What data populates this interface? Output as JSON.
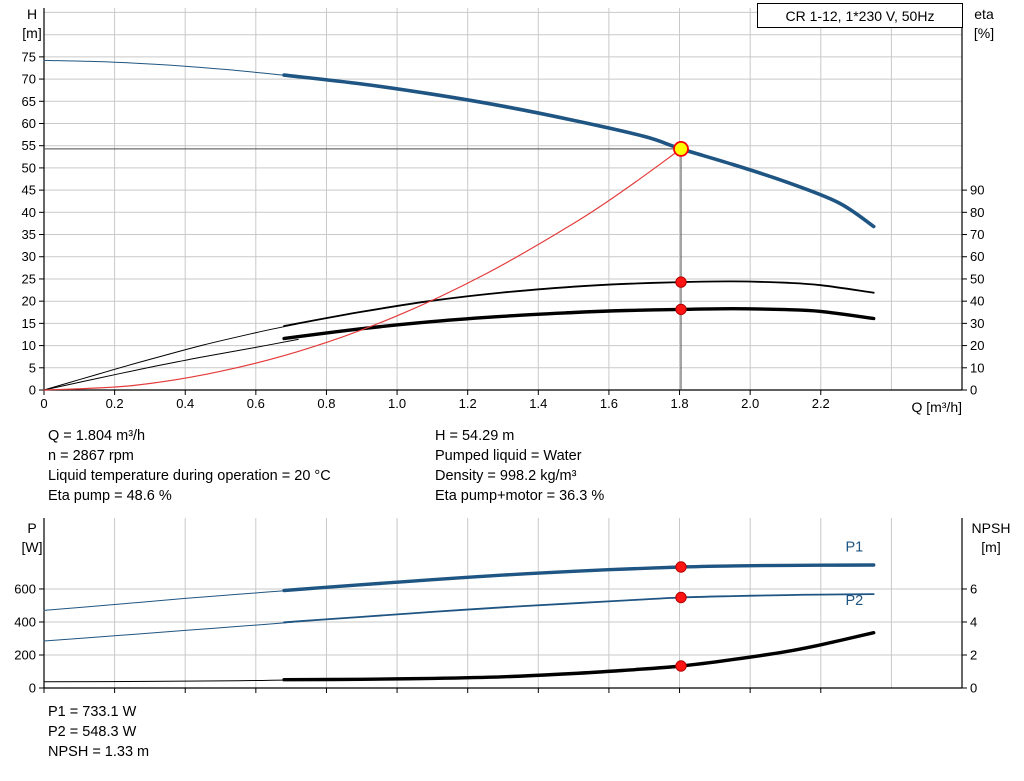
{
  "title_box": "CR 1-12, 1*230 V, 50Hz",
  "colors": {
    "curve_blue": "#1f5582",
    "curve_black": "#000000",
    "system_red": "#e43c3c",
    "marker": "#ff1414",
    "marker_edge": "#b40000",
    "duty_fill": "#ffff00",
    "duty_stroke": "#ff0000",
    "grid": "#c9c9c9",
    "crosshair": "#4a4a4a"
  },
  "axis_labels": {
    "h": "H",
    "h_unit": "[m]",
    "eta": "eta",
    "eta_unit": "[%]",
    "q": "Q [m³/h]",
    "p": "P",
    "p_unit": "[W]",
    "npsh": "NPSH",
    "npsh_unit": "[m]"
  },
  "info_left": [
    "Q = 1.804 m³/h",
    "n = 2867 rpm",
    "Liquid temperature during operation = 20 °C",
    "Eta pump = 48.6 %"
  ],
  "info_right": [
    "H = 54.29 m",
    "Pumped liquid = Water",
    "Density = 998.2 kg/m³",
    "Eta pump+motor = 36.3 %"
  ],
  "info_bottom": [
    "P1 = 733.1 W",
    "P2 = 548.3 W",
    "NPSH = 1.33 m"
  ],
  "chart_data": [
    {
      "type": "line",
      "name": "head-efficiency-chart",
      "title": "CR 1-12, 1*230 V, 50Hz",
      "xlabel": "Q [m³/h]",
      "ylabel_left": "H [m]",
      "ylabel_right": "eta [%]",
      "xlim": [
        0,
        2.6
      ],
      "x_ticks": [
        "0",
        "0.2",
        "0.4",
        "0.6",
        "0.8",
        "1.0",
        "1.2",
        "1.4",
        "1.6",
        "1.8",
        "2.0",
        "2.2"
      ],
      "x_tick_labels": true,
      "x_grid": [
        0.2,
        0.4,
        0.6,
        0.8,
        1.0,
        1.2,
        1.4,
        1.6,
        1.8,
        2.0,
        2.2,
        2.4
      ],
      "ylim_left": [
        0,
        86
      ],
      "y_ticks_left": [
        "0",
        "5",
        "10",
        "15",
        "20",
        "25",
        "30",
        "35",
        "40",
        "45",
        "50",
        "55",
        "60",
        "65",
        "70",
        "75"
      ],
      "y_grid": [
        5,
        10,
        15,
        20,
        25,
        30,
        35,
        40,
        45,
        50,
        55,
        60,
        65,
        70,
        75,
        80,
        85
      ],
      "ylim_right": [
        0,
        172
      ],
      "y_ticks_right": [
        "0",
        "10",
        "20",
        "30",
        "40",
        "50",
        "60",
        "70",
        "80",
        "90"
      ],
      "series": [
        {
          "name": "h-curve-extension",
          "axis": "left",
          "color": "#1f5582",
          "width": 1,
          "points": [
            [
              0,
              74.2
            ],
            [
              0.2,
              73.8
            ],
            [
              0.4,
              72.9
            ],
            [
              0.55,
              71.9
            ],
            [
              0.72,
              70.5
            ]
          ]
        },
        {
          "name": "h-curve",
          "axis": "left",
          "color": "#1f5582",
          "width": 3.6,
          "points": [
            [
              0.68,
              70.9
            ],
            [
              0.9,
              68.9
            ],
            [
              1.1,
              66.6
            ],
            [
              1.3,
              63.9
            ],
            [
              1.5,
              60.7
            ],
            [
              1.7,
              57.1
            ],
            [
              1.804,
              54.29
            ],
            [
              1.95,
              50.8
            ],
            [
              2.1,
              46.9
            ],
            [
              2.25,
              42.2
            ],
            [
              2.35,
              36.8
            ]
          ]
        },
        {
          "name": "eta-pump-curve-extension",
          "axis": "right",
          "color": "#000000",
          "width": 1,
          "points": [
            [
              0,
              0
            ],
            [
              0.15,
              7
            ],
            [
              0.3,
              13.8
            ],
            [
              0.45,
              20.2
            ],
            [
              0.6,
              25.8
            ],
            [
              0.72,
              29.8
            ]
          ]
        },
        {
          "name": "eta-pump-curve",
          "axis": "right",
          "color": "#000000",
          "width": 1.8,
          "points": [
            [
              0.68,
              28.8
            ],
            [
              0.9,
              35.2
            ],
            [
              1.1,
              40.2
            ],
            [
              1.3,
              43.9
            ],
            [
              1.5,
              46.5
            ],
            [
              1.65,
              47.8
            ],
            [
              1.804,
              48.6
            ],
            [
              1.95,
              48.9
            ],
            [
              2.1,
              48.3
            ],
            [
              2.2,
              47.2
            ],
            [
              2.35,
              43.8
            ]
          ]
        },
        {
          "name": "eta-pump-motor-curve-extension",
          "axis": "right",
          "color": "#000000",
          "width": 1,
          "points": [
            [
              0,
              0
            ],
            [
              0.15,
              5.2
            ],
            [
              0.3,
              10.2
            ],
            [
              0.45,
              14.9
            ],
            [
              0.6,
              19.2
            ],
            [
              0.72,
              22.8
            ]
          ]
        },
        {
          "name": "eta-pump-motor-curve",
          "axis": "right",
          "color": "#000000",
          "width": 3.4,
          "points": [
            [
              0.68,
              23.2
            ],
            [
              0.9,
              27.6
            ],
            [
              1.1,
              30.8
            ],
            [
              1.3,
              33.2
            ],
            [
              1.5,
              34.9
            ],
            [
              1.65,
              35.8
            ],
            [
              1.804,
              36.3
            ],
            [
              1.95,
              36.6
            ],
            [
              2.1,
              36.2
            ],
            [
              2.2,
              35.4
            ],
            [
              2.35,
              32.2
            ]
          ]
        },
        {
          "name": "system-curve",
          "axis": "left",
          "color": "#e43c3c",
          "width": 1.2,
          "points": [
            [
              0,
              0
            ],
            [
              0.25,
              1.0
            ],
            [
              0.5,
              4.2
            ],
            [
              0.75,
              9.4
            ],
            [
              1.0,
              16.7
            ],
            [
              1.25,
              26.1
            ],
            [
              1.5,
              37.5
            ],
            [
              1.65,
              45.4
            ],
            [
              1.804,
              54.29
            ]
          ]
        }
      ],
      "crosshair": {
        "q": 1.804,
        "value": 54.29,
        "axis": "left"
      },
      "markers": [
        {
          "q": 1.804,
          "value": 48.6,
          "axis": "right",
          "type": "dot"
        },
        {
          "q": 1.804,
          "value": 36.3,
          "axis": "right",
          "type": "dot"
        },
        {
          "q": 1.804,
          "value": 54.29,
          "axis": "left",
          "type": "duty"
        }
      ],
      "duty_point": {
        "q_m3h": 1.804,
        "h_m": 54.29,
        "eta_pump_pct": 48.6,
        "eta_pump_motor_pct": 36.3
      }
    },
    {
      "type": "line",
      "name": "power-npsh-chart",
      "xlabel": "",
      "ylabel_left": "P [W]",
      "ylabel_right": "NPSH [m]",
      "xlim": [
        0,
        2.6
      ],
      "x_ticks": [
        "0",
        "0.2",
        "0.4",
        "0.6",
        "0.8",
        "1.0",
        "1.2",
        "1.4",
        "1.6",
        "1.8",
        "2.0",
        "2.2"
      ],
      "x_tick_labels": false,
      "x_grid": [
        0.2,
        0.4,
        0.6,
        0.8,
        1.0,
        1.2,
        1.4,
        1.6,
        1.8,
        2.0,
        2.2,
        2.4
      ],
      "ylim_left": [
        0,
        1030
      ],
      "y_ticks_left": [
        "0",
        "200",
        "400",
        "600"
      ],
      "y_grid": [
        200,
        400,
        600
      ],
      "ylim_right": [
        0,
        10.3
      ],
      "y_ticks_right": [
        "0",
        "2",
        "4",
        "6"
      ],
      "series": [
        {
          "name": "p1-curve-extension",
          "axis": "left",
          "color": "#1f5582",
          "width": 1,
          "points": [
            [
              0,
              470
            ],
            [
              0.2,
              506
            ],
            [
              0.4,
              543
            ],
            [
              0.55,
              568
            ],
            [
              0.72,
              595
            ]
          ]
        },
        {
          "name": "p1-curve",
          "axis": "left",
          "color": "#1f5582",
          "width": 3.4,
          "points": [
            [
              0.68,
              591
            ],
            [
              0.9,
              626
            ],
            [
              1.1,
              656
            ],
            [
              1.3,
              684
            ],
            [
              1.5,
              707
            ],
            [
              1.65,
              721
            ],
            [
              1.804,
              733.1
            ],
            [
              1.95,
              740
            ],
            [
              2.1,
              743
            ],
            [
              2.2,
              744
            ],
            [
              2.35,
              745
            ]
          ]
        },
        {
          "name": "p2-curve-extension",
          "axis": "left",
          "color": "#1f5582",
          "width": 1,
          "points": [
            [
              0,
              285
            ],
            [
              0.2,
              316
            ],
            [
              0.4,
              349
            ],
            [
              0.55,
              373
            ],
            [
              0.72,
              401
            ]
          ]
        },
        {
          "name": "p2-curve",
          "axis": "left",
          "color": "#1f5582",
          "width": 1.8,
          "points": [
            [
              0.68,
              398
            ],
            [
              0.9,
              431
            ],
            [
              1.1,
              461
            ],
            [
              1.3,
              489
            ],
            [
              1.5,
              513
            ],
            [
              1.65,
              531
            ],
            [
              1.804,
              548.3
            ],
            [
              1.95,
              557
            ],
            [
              2.1,
              563
            ],
            [
              2.2,
              566
            ],
            [
              2.35,
              569
            ]
          ]
        },
        {
          "name": "npsh-curve-extension",
          "axis": "right",
          "color": "#000000",
          "width": 1,
          "points": [
            [
              0,
              0.38
            ],
            [
              0.3,
              0.4
            ],
            [
              0.55,
              0.44
            ],
            [
              0.72,
              0.5
            ]
          ]
        },
        {
          "name": "npsh-curve",
          "axis": "right",
          "color": "#000000",
          "width": 3.4,
          "points": [
            [
              0.68,
              0.5
            ],
            [
              0.9,
              0.53
            ],
            [
              1.1,
              0.58
            ],
            [
              1.3,
              0.68
            ],
            [
              1.5,
              0.88
            ],
            [
              1.65,
              1.08
            ],
            [
              1.804,
              1.33
            ],
            [
              1.95,
              1.72
            ],
            [
              2.1,
              2.2
            ],
            [
              2.2,
              2.62
            ],
            [
              2.35,
              3.35
            ]
          ]
        }
      ],
      "markers": [
        {
          "q": 1.804,
          "value": 733.1,
          "axis": "left",
          "type": "dot"
        },
        {
          "q": 1.804,
          "value": 548.3,
          "axis": "left",
          "type": "dot"
        },
        {
          "q": 1.804,
          "value": 1.33,
          "axis": "right",
          "type": "dot"
        }
      ],
      "curve_labels": [
        {
          "text": "P1",
          "q": 2.27,
          "value": 828,
          "axis": "left",
          "color": "#1f5582"
        },
        {
          "text": "P2",
          "q": 2.27,
          "value": 503,
          "axis": "left",
          "color": "#1f5582"
        }
      ],
      "duty_point": {
        "q_m3h": 1.804,
        "p1_w": 733.1,
        "p2_w": 548.3,
        "npsh_m": 1.33
      }
    }
  ]
}
